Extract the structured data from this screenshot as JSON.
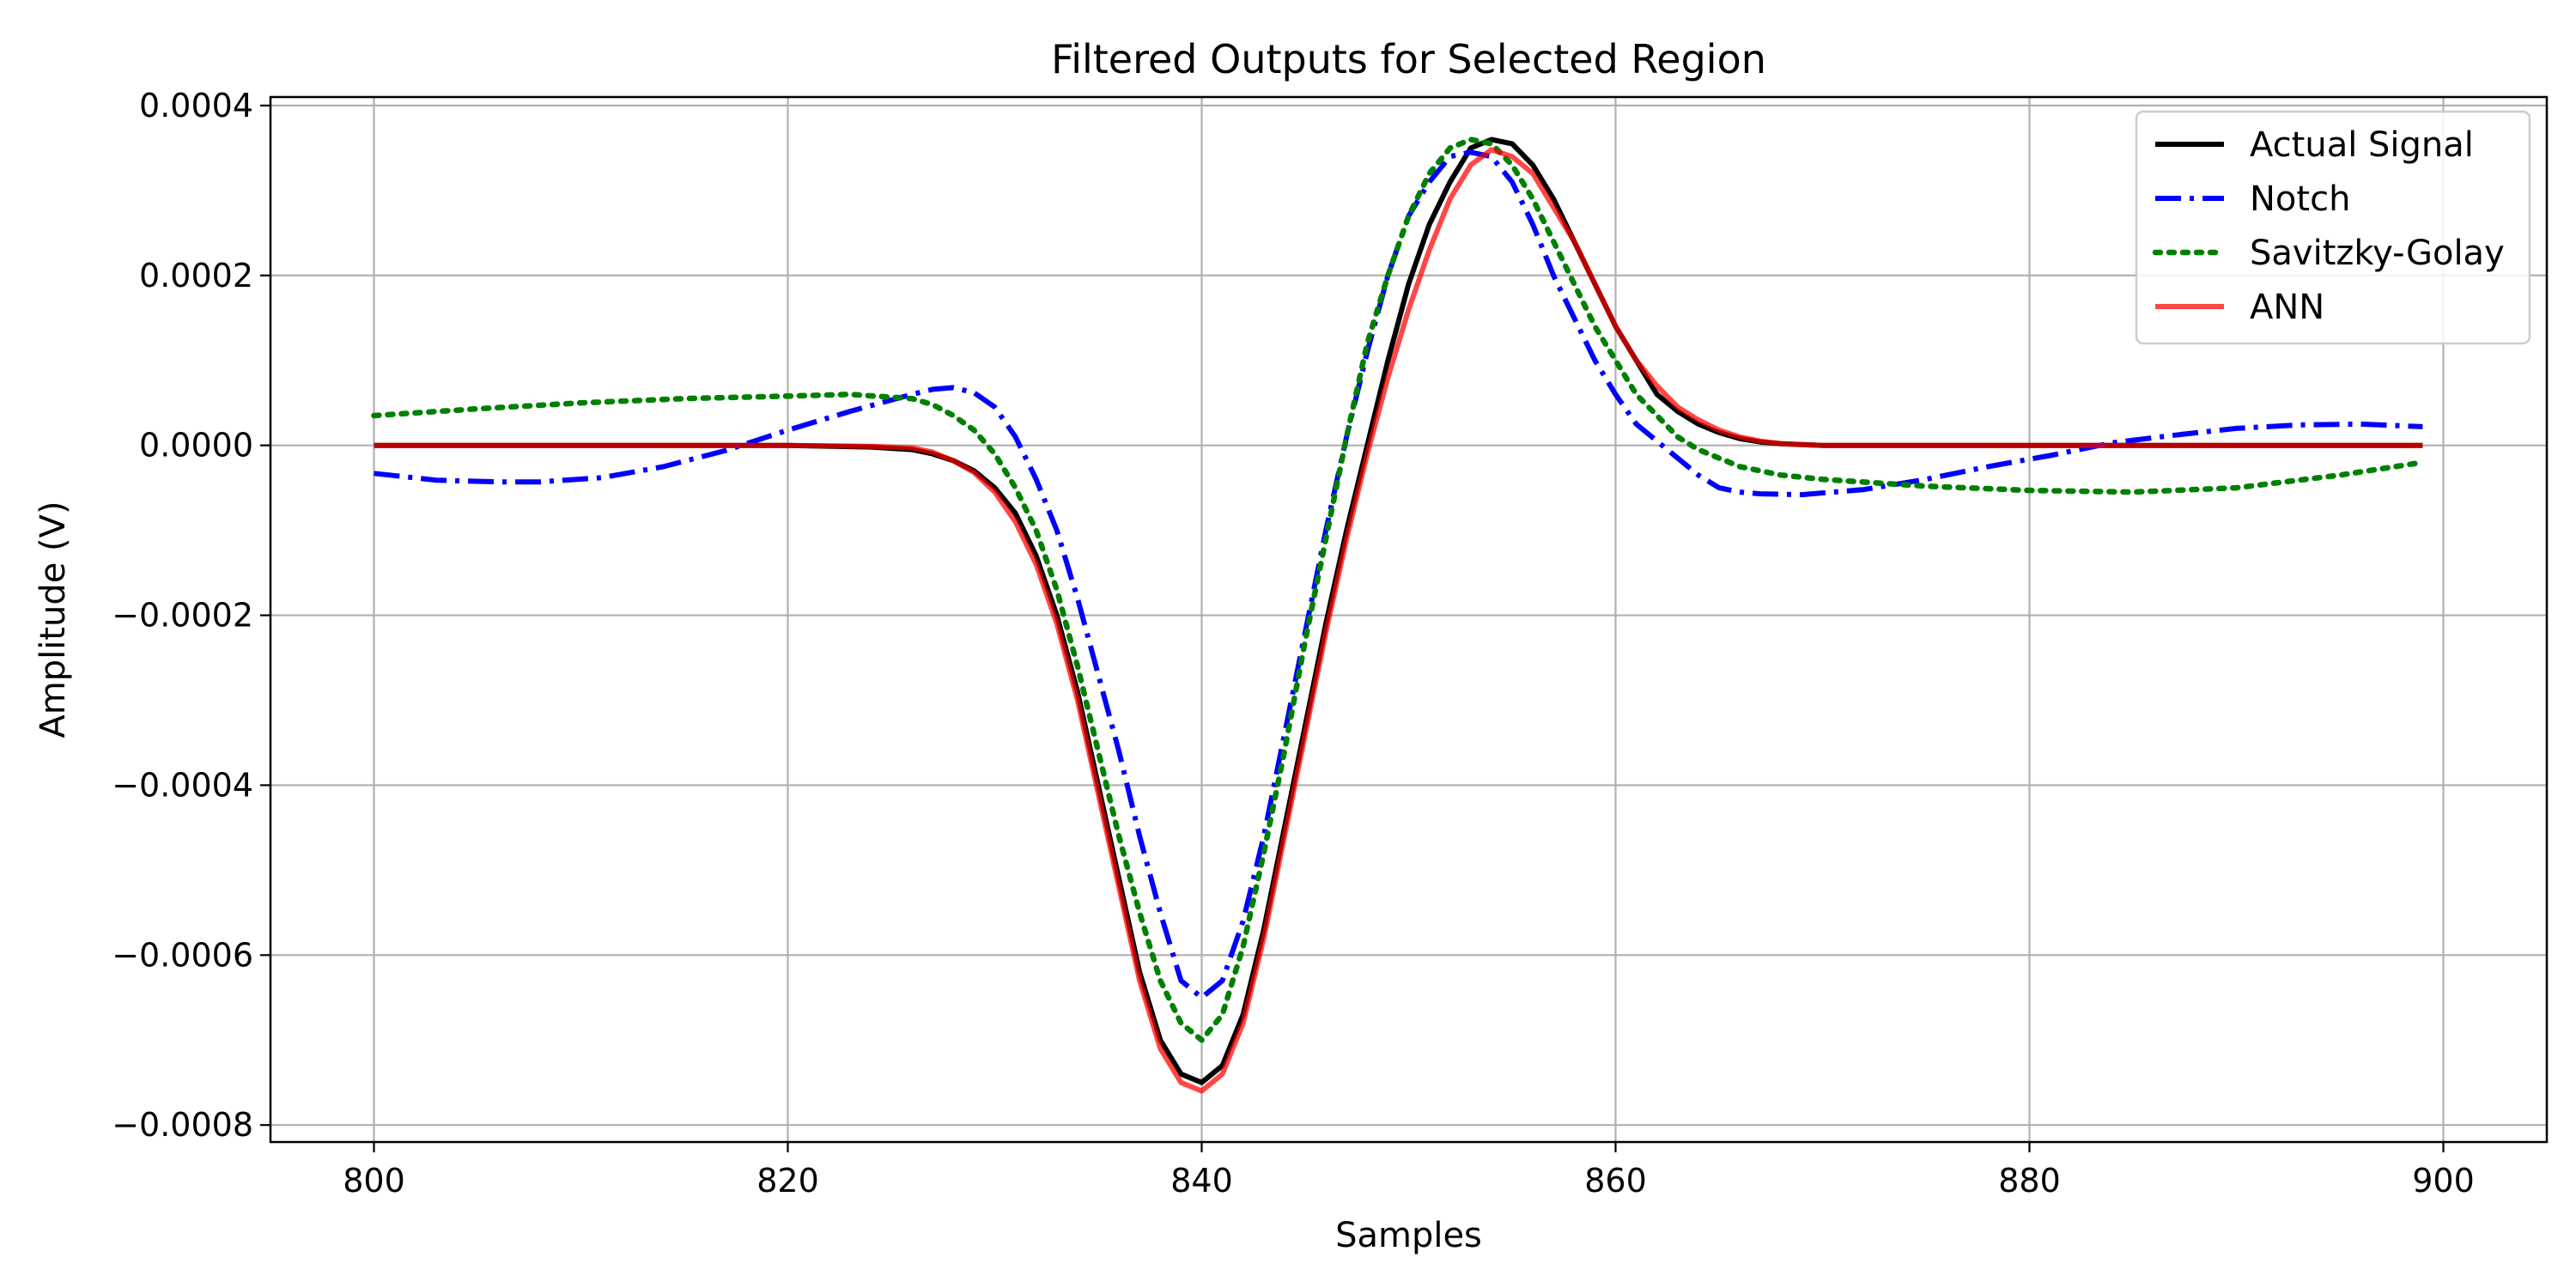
{
  "chart_data": {
    "type": "line",
    "title": "Filtered Outputs for Selected Region",
    "xlabel": "Samples",
    "ylabel": "Amplitude (V)",
    "xlim": [
      795,
      905
    ],
    "ylim": [
      -0.00082,
      0.00041
    ],
    "xticks": [
      800,
      820,
      840,
      860,
      880,
      900
    ],
    "xtick_labels": [
      "800",
      "820",
      "840",
      "860",
      "880",
      "900"
    ],
    "yticks": [
      -0.0008,
      -0.0006,
      -0.0004,
      -0.0002,
      0.0,
      0.0002,
      0.0004
    ],
    "ytick_labels": [
      "−0.0008",
      "−0.0006",
      "−0.0004",
      "−0.0002",
      "0.0000",
      "0.0002",
      "0.0004"
    ],
    "grid": true,
    "legend_position": "top-right",
    "series": [
      {
        "name": "Actual Signal",
        "color": "#000000",
        "style": "solid",
        "x": [
          800,
          810,
          820,
          824,
          826,
          827,
          828,
          829,
          830,
          831,
          832,
          833,
          834,
          835,
          836,
          837,
          838,
          839,
          840,
          841,
          842,
          843,
          844,
          845,
          846,
          847,
          848,
          849,
          850,
          851,
          852,
          853,
          854,
          855,
          856,
          857,
          858,
          859,
          860,
          861,
          862,
          863,
          864,
          865,
          866,
          867,
          868,
          870,
          880,
          899
        ],
        "y": [
          0,
          0,
          0,
          -2e-06,
          -5e-06,
          -1e-05,
          -1.8e-05,
          -3e-05,
          -5e-05,
          -8e-05,
          -0.00013,
          -0.0002,
          -0.00029,
          -0.0004,
          -0.00051,
          -0.00062,
          -0.0007,
          -0.00074,
          -0.00075,
          -0.00073,
          -0.00067,
          -0.00057,
          -0.00045,
          -0.00033,
          -0.00021,
          -0.0001,
          0.0,
          0.0001,
          0.00019,
          0.00026,
          0.00031,
          0.00035,
          0.00036,
          0.000355,
          0.00033,
          0.00029,
          0.00024,
          0.00019,
          0.00014,
          0.0001,
          6e-05,
          4e-05,
          2.5e-05,
          1.5e-05,
          8e-06,
          4e-06,
          2e-06,
          0.0,
          0,
          0
        ]
      },
      {
        "name": "Notch",
        "color": "#0000ff",
        "style": "dashdot",
        "x": [
          800,
          803,
          806,
          808,
          811,
          814,
          817,
          820,
          823,
          826,
          827,
          828,
          829,
          830,
          831,
          832,
          833,
          834,
          835,
          836,
          837,
          838,
          839,
          840,
          841,
          842,
          843,
          844,
          845,
          846,
          847,
          848,
          849,
          850,
          851,
          852,
          853,
          854,
          855,
          856,
          857,
          858,
          859,
          860,
          861,
          862,
          863,
          864,
          865,
          866,
          867,
          869,
          872,
          875,
          878,
          881,
          884,
          887,
          890,
          893,
          896,
          899
        ],
        "y": [
          -3.3e-05,
          -4.1e-05,
          -4.3e-05,
          -4.3e-05,
          -3.8e-05,
          -2.5e-05,
          -6e-06,
          1.8e-05,
          4e-05,
          6e-05,
          6.6e-05,
          6.8e-05,
          6.2e-05,
          4.5e-05,
          1e-05,
          -4e-05,
          -0.0001,
          -0.00018,
          -0.00027,
          -0.00036,
          -0.00046,
          -0.00055,
          -0.00063,
          -0.00065,
          -0.00063,
          -0.00056,
          -0.00046,
          -0.00034,
          -0.00022,
          -0.0001,
          1e-05,
          0.00011,
          0.0002,
          0.00027,
          0.00031,
          0.00034,
          0.000345,
          0.00034,
          0.00031,
          0.00026,
          0.0002,
          0.00015,
          0.0001,
          6e-05,
          2.5e-05,
          5e-06,
          -1.5e-05,
          -3.5e-05,
          -5e-05,
          -5.5e-05,
          -5.7e-05,
          -5.8e-05,
          -5.2e-05,
          -4e-05,
          -2.5e-05,
          -1.2e-05,
          3e-06,
          1.2e-05,
          2e-05,
          2.4e-05,
          2.5e-05,
          2.2e-05
        ]
      },
      {
        "name": "Savitzky-Golay",
        "color": "#008000",
        "style": "dotted",
        "x": [
          800,
          805,
          810,
          815,
          820,
          823,
          826,
          827,
          828,
          829,
          830,
          831,
          832,
          833,
          834,
          835,
          836,
          837,
          838,
          839,
          840,
          841,
          842,
          843,
          844,
          845,
          846,
          847,
          848,
          849,
          850,
          851,
          852,
          853,
          854,
          855,
          856,
          857,
          858,
          859,
          860,
          861,
          862,
          863,
          864,
          865,
          866,
          868,
          870,
          875,
          880,
          885,
          890,
          895,
          899
        ],
        "y": [
          3.5e-05,
          4.3e-05,
          5e-05,
          5.5e-05,
          5.8e-05,
          6e-05,
          5.5e-05,
          4.8e-05,
          3.5e-05,
          1.8e-05,
          -1e-05,
          -5e-05,
          -0.0001,
          -0.00017,
          -0.00026,
          -0.00036,
          -0.00046,
          -0.00055,
          -0.00063,
          -0.00068,
          -0.0007,
          -0.00067,
          -0.00059,
          -0.00048,
          -0.00036,
          -0.00023,
          -0.00011,
          1e-05,
          0.00012,
          0.0002,
          0.00027,
          0.00032,
          0.00035,
          0.00036,
          0.000355,
          0.00033,
          0.00029,
          0.00024,
          0.00019,
          0.00014,
          0.0001,
          6e-05,
          3.5e-05,
          1e-05,
          -5e-06,
          -1.5e-05,
          -2.5e-05,
          -3.5e-05,
          -4e-05,
          -4.8e-05,
          -5.3e-05,
          -5.5e-05,
          -5e-05,
          -3.5e-05,
          -2e-05
        ]
      },
      {
        "name": "ANN",
        "color": "#ff0000",
        "style": "solid",
        "x": [
          800,
          810,
          820,
          824,
          826,
          827,
          828,
          829,
          830,
          831,
          832,
          833,
          834,
          835,
          836,
          837,
          838,
          839,
          840,
          841,
          842,
          843,
          844,
          845,
          846,
          847,
          848,
          849,
          850,
          851,
          852,
          853,
          854,
          855,
          856,
          857,
          858,
          859,
          860,
          861,
          862,
          863,
          864,
          865,
          866,
          867,
          868,
          870,
          880,
          899
        ],
        "y": [
          0,
          0,
          0,
          -1e-06,
          -3e-06,
          -8e-06,
          -1.8e-05,
          -3.2e-05,
          -5.5e-05,
          -9e-05,
          -0.00014,
          -0.00021,
          -0.0003,
          -0.00041,
          -0.00052,
          -0.00063,
          -0.00071,
          -0.00075,
          -0.00076,
          -0.00074,
          -0.00068,
          -0.00058,
          -0.00046,
          -0.00034,
          -0.00022,
          -0.00011,
          -1e-05,
          8e-05,
          0.00016,
          0.00023,
          0.00029,
          0.00033,
          0.000348,
          0.00034,
          0.00032,
          0.00028,
          0.00024,
          0.00019,
          0.00014,
          0.0001,
          7e-05,
          4.5e-05,
          3e-05,
          1.8e-05,
          1e-05,
          5e-06,
          2e-06,
          0.0,
          0,
          0
        ]
      }
    ]
  }
}
